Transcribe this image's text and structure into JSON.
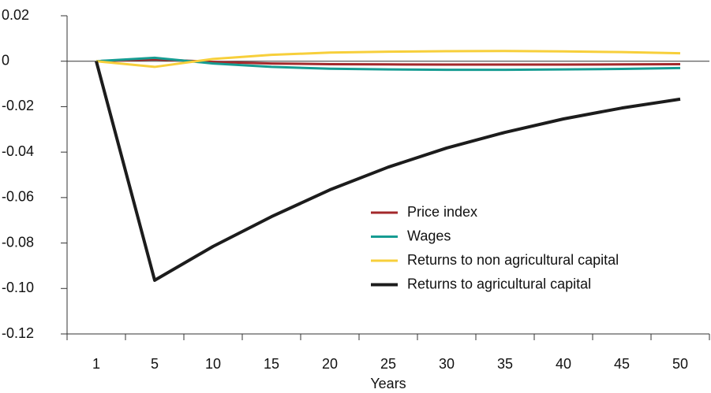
{
  "chart_data": {
    "type": "line",
    "x_label": "Years",
    "categories": [
      "1",
      "5",
      "10",
      "15",
      "20",
      "25",
      "30",
      "35",
      "40",
      "45",
      "50"
    ],
    "series": [
      {
        "name": "Price index",
        "color": "#a3282b",
        "values": [
          0,
          0.0008,
          -0.0003,
          -0.001,
          -0.0013,
          -0.0014,
          -0.0015,
          -0.0015,
          -0.0015,
          -0.0014,
          -0.0013
        ]
      },
      {
        "name": "Wages",
        "color": "#169c92",
        "values": [
          0,
          0.0015,
          -0.001,
          -0.0025,
          -0.0033,
          -0.0036,
          -0.0038,
          -0.0038,
          -0.0036,
          -0.0034,
          -0.003
        ]
      },
      {
        "name": "Returns to non agricultural capital",
        "color": "#f7cf3b",
        "values": [
          0,
          -0.0025,
          0.001,
          0.0028,
          0.0038,
          0.0042,
          0.0044,
          0.0045,
          0.0043,
          0.004,
          0.0035
        ]
      },
      {
        "name": "Returns to agricultural capital",
        "color": "#1c1c1c",
        "values": [
          0,
          -0.0964,
          -0.0815,
          -0.0684,
          -0.0566,
          -0.0466,
          -0.0382,
          -0.0313,
          -0.0254,
          -0.0206,
          -0.0167
        ]
      }
    ],
    "ylim": [
      -0.12,
      0.02
    ],
    "yticks": [
      0.02,
      0,
      -0.02,
      -0.04,
      -0.06,
      -0.08,
      {
        "value": -0.1,
        "label": "-0.10"
      },
      -0.12
    ],
    "legend": "center"
  }
}
